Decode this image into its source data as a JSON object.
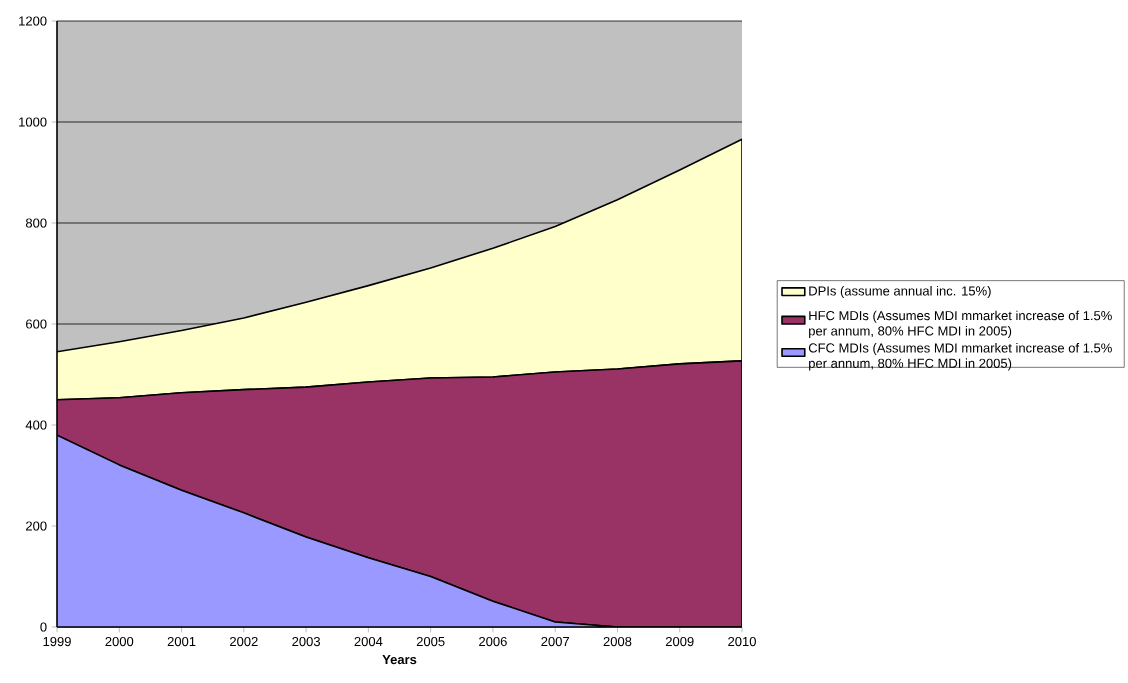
{
  "chart_data": {
    "type": "area",
    "stacked": true,
    "xlabel": "Years",
    "categories": [
      "1999",
      "2000",
      "2001",
      "2002",
      "2003",
      "2004",
      "2005",
      "2006",
      "2007",
      "2008",
      "2009",
      "2010"
    ],
    "series": [
      {
        "name": "CFC MDIs (Assumes MDI mmarket increase of 1.5% per annum, 80% HFC MDI in 2005)",
        "color": "#9999ff",
        "values": [
          380,
          321,
          271,
          226,
          178,
          137,
          100,
          51,
          10,
          0,
          0,
          0
        ]
      },
      {
        "name": "HFC MDIs (Assumes MDI mmarket increase of 1.5% per annum, 80% HFC MDI in 2005)",
        "color": "#993366",
        "values": [
          70,
          133,
          193,
          244,
          297,
          348,
          393,
          444,
          495,
          511,
          521,
          527
        ]
      },
      {
        "name": "DPIs (assume annual inc. 15%)",
        "color": "#ffffcc",
        "values": [
          95,
          111,
          123,
          142,
          168,
          191,
          218,
          255,
          288,
          335,
          384,
          439
        ]
      }
    ],
    "ylim": [
      0,
      1200
    ],
    "yticks": [
      0,
      200,
      400,
      600,
      800,
      1000,
      1200
    ],
    "grid": "y",
    "legend": "right"
  }
}
